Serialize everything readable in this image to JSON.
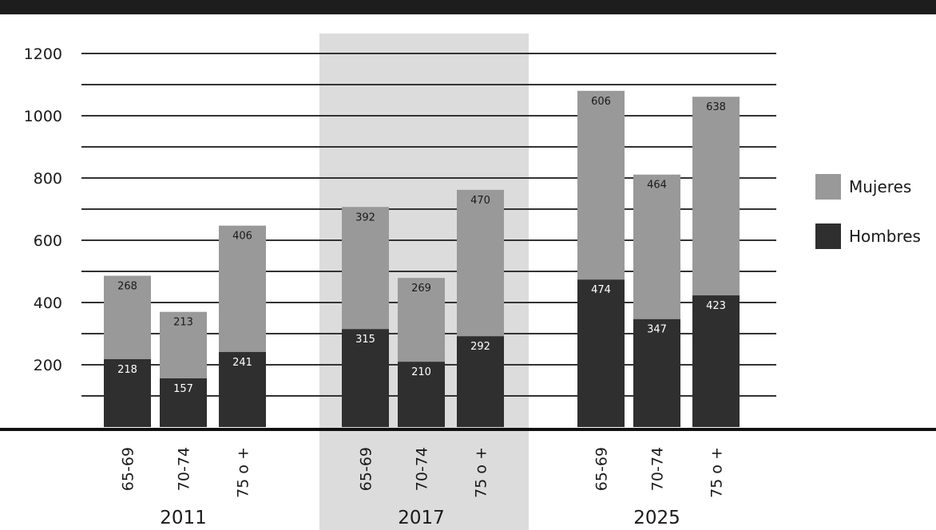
{
  "colors": {
    "header": "#1d1d1d",
    "highlight_band": "#dcdcdc",
    "mujeres": "#999999",
    "hombres": "#2f2f2f",
    "gridline": "#333333",
    "baseline": "#111111"
  },
  "chart_data": {
    "type": "bar",
    "stacked": true,
    "groups": [
      {
        "year": "2011",
        "highlighted": false,
        "categories": [
          "65-69",
          "70-74",
          "75 o +"
        ],
        "hombres": [
          218,
          157,
          241
        ],
        "mujeres": [
          268,
          213,
          406
        ]
      },
      {
        "year": "2017",
        "highlighted": true,
        "categories": [
          "65-69",
          "70-74",
          "75 o +"
        ],
        "hombres": [
          315,
          210,
          292
        ],
        "mujeres": [
          392,
          269,
          470
        ]
      },
      {
        "year": "2025",
        "highlighted": false,
        "categories": [
          "65-69",
          "70-74",
          "75 o +"
        ],
        "hombres": [
          474,
          347,
          423
        ],
        "mujeres": [
          606,
          464,
          638
        ]
      }
    ],
    "series": [
      {
        "name": "Hombres",
        "color": "#2f2f2f"
      },
      {
        "name": "Mujeres",
        "color": "#999999"
      }
    ],
    "y_ticks": [
      200,
      400,
      600,
      800,
      1000,
      1200
    ],
    "gridline_step": 100,
    "ylim": [
      0,
      1300
    ],
    "grid": true,
    "legend_position": "right",
    "legend": [
      "Mujeres",
      "Hombres"
    ]
  }
}
